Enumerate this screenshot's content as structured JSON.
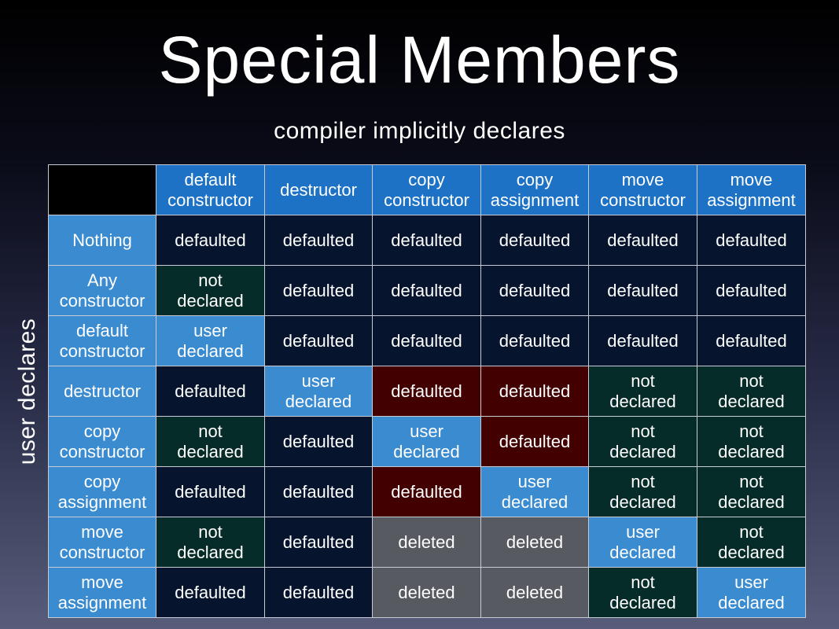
{
  "title": "Special Members",
  "subtitle": "compiler implicitly declares",
  "side_label": "user declares",
  "columns": [
    "default\nconstructor",
    "destructor",
    "copy\nconstructor",
    "copy\nassignment",
    "move\nconstructor",
    "move\nassignment"
  ],
  "rows": [
    {
      "label": "Nothing",
      "cells": [
        {
          "text": "defaulted",
          "kind": "defaulted"
        },
        {
          "text": "defaulted",
          "kind": "defaulted"
        },
        {
          "text": "defaulted",
          "kind": "defaulted"
        },
        {
          "text": "defaulted",
          "kind": "defaulted"
        },
        {
          "text": "defaulted",
          "kind": "defaulted"
        },
        {
          "text": "defaulted",
          "kind": "defaulted"
        }
      ]
    },
    {
      "label": "Any\nconstructor",
      "cells": [
        {
          "text": "not\ndeclared",
          "kind": "not-declared"
        },
        {
          "text": "defaulted",
          "kind": "defaulted"
        },
        {
          "text": "defaulted",
          "kind": "defaulted"
        },
        {
          "text": "defaulted",
          "kind": "defaulted"
        },
        {
          "text": "defaulted",
          "kind": "defaulted"
        },
        {
          "text": "defaulted",
          "kind": "defaulted"
        }
      ]
    },
    {
      "label": "default\nconstructor",
      "cells": [
        {
          "text": "user\ndeclared",
          "kind": "user-declared"
        },
        {
          "text": "defaulted",
          "kind": "defaulted"
        },
        {
          "text": "defaulted",
          "kind": "defaulted"
        },
        {
          "text": "defaulted",
          "kind": "defaulted"
        },
        {
          "text": "defaulted",
          "kind": "defaulted"
        },
        {
          "text": "defaulted",
          "kind": "defaulted"
        }
      ]
    },
    {
      "label": "destructor",
      "cells": [
        {
          "text": "defaulted",
          "kind": "defaulted"
        },
        {
          "text": "user\ndeclared",
          "kind": "user-declared"
        },
        {
          "text": "defaulted",
          "kind": "red"
        },
        {
          "text": "defaulted",
          "kind": "red"
        },
        {
          "text": "not\ndeclared",
          "kind": "not-declared"
        },
        {
          "text": "not\ndeclared",
          "kind": "not-declared"
        }
      ]
    },
    {
      "label": "copy\nconstructor",
      "cells": [
        {
          "text": "not\ndeclared",
          "kind": "not-declared"
        },
        {
          "text": "defaulted",
          "kind": "defaulted"
        },
        {
          "text": "user\ndeclared",
          "kind": "user-declared"
        },
        {
          "text": "defaulted",
          "kind": "red"
        },
        {
          "text": "not\ndeclared",
          "kind": "not-declared"
        },
        {
          "text": "not\ndeclared",
          "kind": "not-declared"
        }
      ]
    },
    {
      "label": "copy\nassignment",
      "cells": [
        {
          "text": "defaulted",
          "kind": "defaulted"
        },
        {
          "text": "defaulted",
          "kind": "defaulted"
        },
        {
          "text": "defaulted",
          "kind": "red"
        },
        {
          "text": "user\ndeclared",
          "kind": "user-declared"
        },
        {
          "text": "not\ndeclared",
          "kind": "not-declared"
        },
        {
          "text": "not\ndeclared",
          "kind": "not-declared"
        }
      ]
    },
    {
      "label": "move\nconstructor",
      "cells": [
        {
          "text": "not\ndeclared",
          "kind": "not-declared"
        },
        {
          "text": "defaulted",
          "kind": "defaulted"
        },
        {
          "text": "deleted",
          "kind": "deleted"
        },
        {
          "text": "deleted",
          "kind": "deleted"
        },
        {
          "text": "user\ndeclared",
          "kind": "user-declared"
        },
        {
          "text": "not\ndeclared",
          "kind": "not-declared"
        }
      ]
    },
    {
      "label": "move\nassignment",
      "cells": [
        {
          "text": "defaulted",
          "kind": "defaulted"
        },
        {
          "text": "defaulted",
          "kind": "defaulted"
        },
        {
          "text": "deleted",
          "kind": "deleted"
        },
        {
          "text": "deleted",
          "kind": "deleted"
        },
        {
          "text": "not\ndeclared",
          "kind": "not-declared"
        },
        {
          "text": "user\ndeclared",
          "kind": "user-declared"
        }
      ]
    }
  ],
  "colors": {
    "header": "#1d72c6",
    "row_header": "#3a8bd0",
    "defaulted": "#06142e",
    "not_declared": "#062c2a",
    "user_declared": "#3a8bd0",
    "red": "#420000",
    "deleted": "#575a60"
  }
}
